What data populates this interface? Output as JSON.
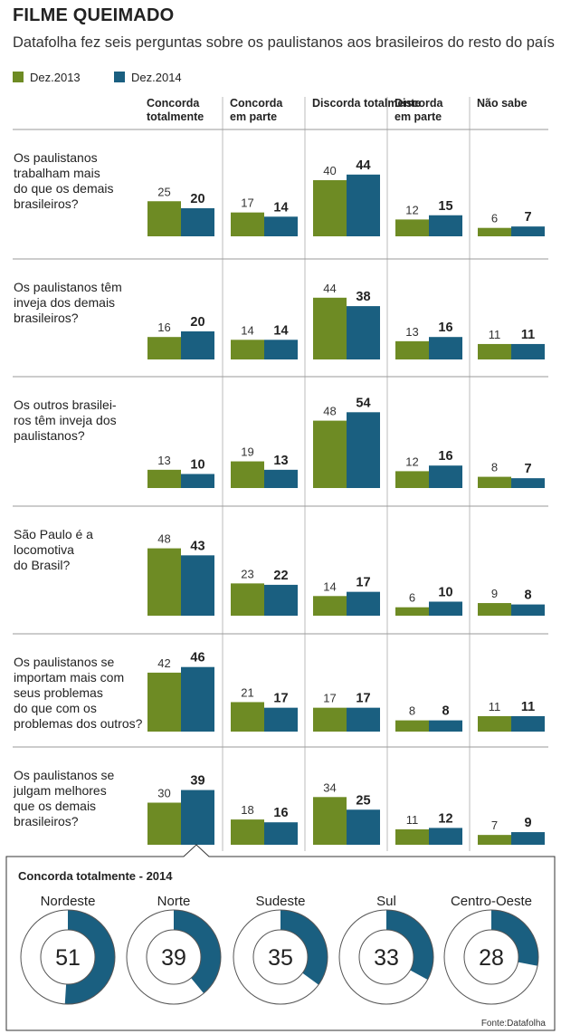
{
  "title": "FILME QUEIMADO",
  "subtitle": "Datafolha fez seis perguntas sobre os paulistanos aos brasileiros do resto do país",
  "legend": [
    {
      "label": "Dez.2013",
      "color": "#6e8b24"
    },
    {
      "label": "Dez.2014",
      "color": "#1a5f80"
    }
  ],
  "source": "Fonte:Datafolha",
  "chart_data": [
    {
      "type": "bar",
      "title": "FILME QUEIMADO",
      "columns": [
        [
          "Concorda",
          "totalmente"
        ],
        [
          "Concorda",
          "em parte"
        ],
        [
          "Discorda totalmente"
        ],
        [
          "Discorda",
          "em parte"
        ],
        [
          "Não sabe"
        ]
      ],
      "questions": [
        {
          "lines": [
            "Os paulistanos",
            "trabalham mais",
            "do que os demais",
            "brasileiros?"
          ],
          "values_2013": [
            25,
            17,
            40,
            12,
            6
          ],
          "values_2014": [
            20,
            14,
            44,
            15,
            7
          ]
        },
        {
          "lines": [
            "Os paulistanos têm",
            "inveja dos demais",
            "brasileiros?"
          ],
          "values_2013": [
            16,
            14,
            44,
            13,
            11
          ],
          "values_2014": [
            20,
            14,
            38,
            16,
            11
          ]
        },
        {
          "lines": [
            "Os outros brasilei-",
            "ros têm inveja dos",
            "paulistanos?"
          ],
          "values_2013": [
            13,
            19,
            48,
            12,
            8
          ],
          "values_2014": [
            10,
            13,
            54,
            16,
            7
          ]
        },
        {
          "lines": [
            "São Paulo é a",
            "locomotiva",
            "do Brasil?"
          ],
          "values_2013": [
            48,
            23,
            14,
            6,
            9
          ],
          "values_2014": [
            43,
            22,
            17,
            10,
            8
          ]
        },
        {
          "lines": [
            "Os paulistanos se",
            "importam mais com",
            "seus problemas",
            "do que com os",
            "problemas dos outros?"
          ],
          "values_2013": [
            42,
            21,
            17,
            8,
            11
          ],
          "values_2014": [
            46,
            17,
            17,
            8,
            11
          ]
        },
        {
          "lines": [
            "Os paulistanos se",
            "julgam melhores",
            "que os demais",
            "brasileiros?"
          ],
          "values_2013": [
            30,
            18,
            34,
            11,
            7
          ],
          "values_2014": [
            39,
            16,
            25,
            12,
            9
          ]
        }
      ],
      "series": [
        {
          "name": "Dez.2013",
          "color": "#6e8b24"
        },
        {
          "name": "Dez.2014",
          "color": "#1a5f80"
        }
      ]
    },
    {
      "type": "pie",
      "title": "Concorda totalmente - 2014",
      "categories": [
        "Nordeste",
        "Norte",
        "Sudeste",
        "Sul",
        "Centro-Oeste"
      ],
      "values": [
        51,
        39,
        35,
        33,
        28
      ],
      "color": "#1a5f80"
    }
  ]
}
